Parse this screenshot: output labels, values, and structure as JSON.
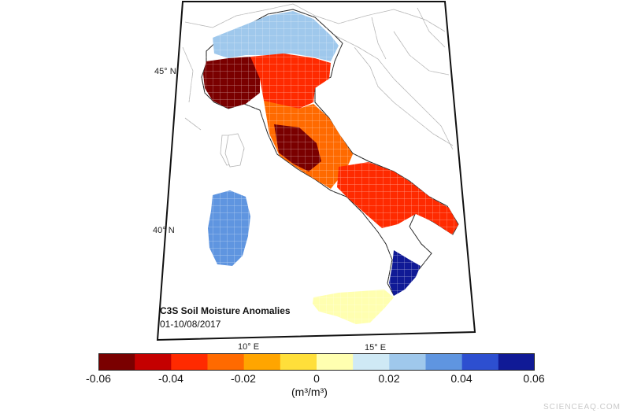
{
  "map": {
    "title": "C3S Soil Moisture Anomalies",
    "date_range": "01-10/08/2017",
    "lat_labels": [
      "45° N",
      "40° N"
    ],
    "lon_labels": [
      "10° E",
      "15° E"
    ],
    "colorbar": {
      "ticks": [
        "-0.06",
        "-0.04",
        "-0.02",
        "0",
        "0.02",
        "0.04",
        "0.06"
      ],
      "units": "(m³/m³)",
      "min": -0.06,
      "max": 0.06,
      "colors": [
        "#7a0000",
        "#c40000",
        "#ff2a00",
        "#ff6a00",
        "#ffa500",
        "#ffdf3a",
        "#ffffb0",
        "#cfe9f5",
        "#9fc8ec",
        "#5f95e0",
        "#2d4fd0",
        "#101a96"
      ]
    },
    "regions": [
      {
        "name": "northwest-italy",
        "anomaly": -0.05
      },
      {
        "name": "po-valley",
        "anomaly": -0.04
      },
      {
        "name": "alps",
        "anomaly": 0.02
      },
      {
        "name": "central-apennines",
        "anomaly": -0.03
      },
      {
        "name": "lazio",
        "anomaly": -0.06
      },
      {
        "name": "puglia",
        "anomaly": -0.035
      },
      {
        "name": "calabria",
        "anomaly": 0.05
      },
      {
        "name": "sicily",
        "anomaly": 0.005
      },
      {
        "name": "sardinia",
        "anomaly": 0.035
      }
    ]
  },
  "watermark": "SCIENCEAQ.COM"
}
